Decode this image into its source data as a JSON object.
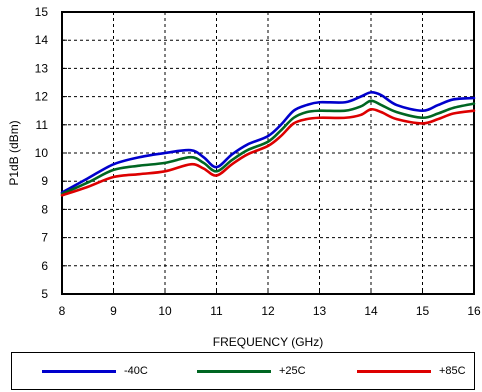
{
  "chart_data": {
    "type": "line",
    "title": "",
    "xlabel": "FREQUENCY (GHz)",
    "ylabel": "P1dB (dBm)",
    "xlim": [
      8,
      16
    ],
    "ylim": [
      5,
      15
    ],
    "xticks": [
      "8",
      "9",
      "10",
      "11",
      "12",
      "13",
      "14",
      "15",
      "16"
    ],
    "yticks": [
      "5",
      "6",
      "7",
      "8",
      "9",
      "10",
      "11",
      "12",
      "13",
      "14",
      "15"
    ],
    "grid": true,
    "legend_position": "bottom",
    "series": [
      {
        "name": "-40C",
        "color": "#0000cc",
        "x": [
          8,
          8.5,
          9,
          9.5,
          10,
          10.5,
          10.75,
          11,
          11.3,
          11.6,
          12,
          12.25,
          12.5,
          12.75,
          13,
          13.5,
          13.8,
          14,
          14.2,
          14.5,
          15,
          15.3,
          15.6,
          16
        ],
        "y": [
          8.6,
          9.1,
          9.6,
          9.85,
          10.0,
          10.1,
          9.85,
          9.5,
          9.95,
          10.3,
          10.6,
          11.0,
          11.5,
          11.7,
          11.8,
          11.8,
          12.0,
          12.15,
          12.05,
          11.7,
          11.5,
          11.7,
          11.9,
          11.95
        ]
      },
      {
        "name": "+25C",
        "color": "#006622",
        "x": [
          8,
          8.5,
          9,
          9.5,
          10,
          10.5,
          10.75,
          11,
          11.3,
          11.6,
          12,
          12.25,
          12.5,
          12.75,
          13,
          13.5,
          13.8,
          14,
          14.2,
          14.5,
          15,
          15.3,
          15.6,
          16
        ],
        "y": [
          8.55,
          8.95,
          9.4,
          9.55,
          9.65,
          9.85,
          9.65,
          9.35,
          9.75,
          10.1,
          10.4,
          10.8,
          11.25,
          11.45,
          11.5,
          11.5,
          11.65,
          11.85,
          11.7,
          11.45,
          11.25,
          11.4,
          11.6,
          11.75
        ]
      },
      {
        "name": "+85C",
        "color": "#dd0000",
        "x": [
          8,
          8.5,
          9,
          9.5,
          10,
          10.5,
          10.75,
          11,
          11.3,
          11.6,
          12,
          12.25,
          12.5,
          12.75,
          13,
          13.5,
          13.8,
          14,
          14.2,
          14.5,
          15,
          15.3,
          15.6,
          16
        ],
        "y": [
          8.5,
          8.8,
          9.15,
          9.25,
          9.35,
          9.6,
          9.45,
          9.2,
          9.6,
          9.95,
          10.25,
          10.6,
          11.05,
          11.2,
          11.25,
          11.25,
          11.35,
          11.55,
          11.45,
          11.2,
          11.05,
          11.2,
          11.4,
          11.5
        ]
      }
    ]
  }
}
